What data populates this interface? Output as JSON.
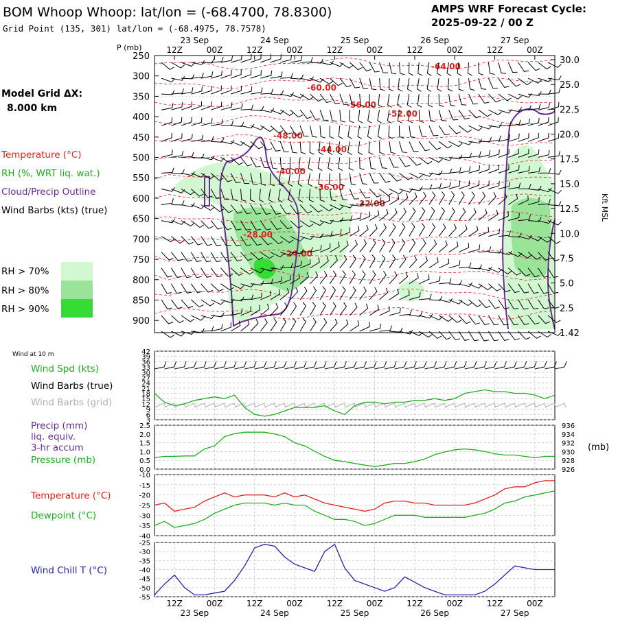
{
  "header": {
    "title": "BOM Whoop Whoop:  lat/lon = (-68.4700, 78.8300)",
    "grid_point": "Grid Point (135, 301) lat/lon = (-68.4975, 78.7578)",
    "cycle_line1": "AMPS WRF Forecast Cycle:",
    "cycle_line2": "2025-09-22 / 00  Z"
  },
  "left_panel": {
    "model_grid_label": "Model Grid ΔX:",
    "model_grid_value": "8.000 km",
    "legend_temperature": "Temperature (°C)",
    "legend_rh": "RH (%, WRT liq. wat.)",
    "legend_cloud": "Cloud/Precip Outline",
    "legend_wind": "Wind Barbs (kts) (true)",
    "rh_70": "RH > 70%",
    "rh_80": "RH > 80%",
    "rh_90": "RH > 90%"
  },
  "colors": {
    "temperature": "#dd2222",
    "rh": "#22aa22",
    "cloud": "#6a2c91",
    "wind_true": "#000000",
    "wind_grid": "#b0b0b0",
    "precip": "#6a2c91",
    "pressure": "#22aa22",
    "wind_chill": "#2222aa",
    "rh70": "#d2f8d2",
    "rh80": "#9ae49a",
    "rh90": "#34dc34"
  },
  "chart_data": [
    {
      "type": "cross-section",
      "name": "time-height",
      "p_axis_title": "P (mb)",
      "p_ticks": [
        "250",
        "300",
        "350",
        "400",
        "450",
        "500",
        "550",
        "600",
        "650",
        "700",
        "750",
        "800",
        "850",
        "900"
      ],
      "p_range": [
        250,
        930
      ],
      "kft_ticks": [
        "30.0",
        "25.0",
        "22.5",
        "20.0",
        "17.5",
        "15.0",
        "12.5",
        "10.0",
        "7.5",
        "5.0",
        "2.5",
        "1.42"
      ],
      "kft_axis_title": "Kft MSL",
      "time_labels_top": [
        "12Z",
        "00Z",
        "12Z",
        "00Z",
        "12Z",
        "00Z",
        "12Z",
        "00Z",
        "12Z",
        "00Z"
      ],
      "date_labels_top": [
        "23 Sep",
        "24 Sep",
        "25 Sep",
        "26 Sep",
        "27 Sep"
      ],
      "temperature_labels": [
        "-64.00",
        "-60.00",
        "-56.00",
        "-52.00",
        "-48.00",
        "-44.00",
        "-40.00",
        "-36.00",
        "-32.00",
        "-28.00",
        "-24.00"
      ]
    },
    {
      "type": "line",
      "name": "wind",
      "title": "Wind at 10 m",
      "label_speed": "Wind Spd (kts)",
      "label_barbs_true": "Wind Barbs (true)",
      "label_barbs_grid": "Wind Barbs (grid)",
      "y_ticks": [
        "42",
        "39",
        "36",
        "33",
        "30",
        "27",
        "24",
        "21",
        "18",
        "15",
        "12",
        "9",
        "6",
        "3"
      ],
      "ylim": [
        3,
        42
      ],
      "hours": [
        0,
        6,
        12,
        18,
        24,
        30,
        36,
        42,
        48,
        54,
        60,
        66,
        72,
        78,
        84,
        90,
        96,
        102,
        108,
        114,
        120,
        126,
        132,
        138,
        144,
        150,
        156,
        162,
        168,
        174,
        180,
        186,
        192,
        198,
        204,
        210,
        216,
        222,
        228,
        234,
        240
      ],
      "speed": [
        18,
        13,
        11,
        12,
        14,
        15,
        16,
        15,
        17,
        10,
        6,
        5,
        6,
        8,
        10,
        10,
        10,
        11,
        8,
        6,
        11,
        13,
        13,
        12,
        13,
        13,
        14,
        14,
        15,
        14,
        15,
        18,
        19,
        20,
        19,
        19,
        18,
        18,
        17,
        15,
        17
      ]
    },
    {
      "type": "line",
      "name": "precip-pressure",
      "label_precip": "Precip (mm)",
      "label_liq": "liq. equiv.",
      "label_accum": "3-hr accum",
      "label_pressure": "Pressure (mb)",
      "y_ticks_left": [
        "2.5",
        "2.0",
        "1.5",
        "1.0",
        "0.5",
        "0.0"
      ],
      "y_ticks_right": [
        "936",
        "934",
        "932",
        "930",
        "928",
        "926"
      ],
      "right_unit": "(mb)",
      "ylim_pressure": [
        926,
        936
      ],
      "hours": [
        0,
        6,
        12,
        18,
        24,
        30,
        36,
        42,
        48,
        54,
        60,
        66,
        72,
        78,
        84,
        90,
        96,
        102,
        108,
        114,
        120,
        126,
        132,
        138,
        144,
        150,
        156,
        162,
        168,
        174,
        180,
        186,
        192,
        198,
        204,
        210,
        216,
        222,
        228,
        234,
        240
      ],
      "pressure": [
        928.6,
        928.9,
        928.9,
        929.0,
        929.0,
        930.6,
        931.3,
        933.4,
        934.1,
        934.4,
        934.4,
        934.4,
        934.0,
        933.4,
        932.0,
        931.3,
        930.1,
        928.9,
        928.0,
        927.7,
        927.3,
        926.9,
        926.6,
        926.9,
        927.3,
        927.3,
        927.7,
        928.3,
        929.3,
        929.9,
        930.4,
        930.6,
        930.4,
        930.0,
        929.5,
        929.2,
        929.2,
        928.9,
        928.6,
        928.9,
        928.9
      ]
    },
    {
      "type": "line",
      "name": "temperature-dewpoint",
      "label_temperature": "Temperature (°C)",
      "label_dewpoint": "Dewpoint (°C)",
      "y_ticks": [
        "-10",
        "-15",
        "-20",
        "-25",
        "-30",
        "-35",
        "-40"
      ],
      "ylim": [
        -40,
        -10
      ],
      "hours": [
        0,
        6,
        12,
        18,
        24,
        30,
        36,
        42,
        48,
        54,
        60,
        66,
        72,
        78,
        84,
        90,
        96,
        102,
        108,
        114,
        120,
        126,
        132,
        138,
        144,
        150,
        156,
        162,
        168,
        174,
        180,
        186,
        192,
        198,
        204,
        210,
        216,
        222,
        228,
        234,
        240
      ],
      "temperature": [
        -25,
        -24,
        -28,
        -27,
        -26,
        -23,
        -21,
        -19,
        -21,
        -20,
        -20,
        -20,
        -21,
        -19,
        -21,
        -20,
        -22,
        -24,
        -25,
        -26,
        -27,
        -28,
        -27,
        -24,
        -23,
        -23,
        -24,
        -24,
        -25,
        -25,
        -25,
        -25,
        -24,
        -22,
        -20,
        -17,
        -16,
        -16,
        -14,
        -13,
        -13
      ],
      "dewpoint": [
        -35,
        -33,
        -36,
        -35,
        -34,
        -32,
        -29,
        -27,
        -25,
        -24,
        -24,
        -24,
        -25,
        -24,
        -25,
        -25,
        -28,
        -30,
        -32,
        -32,
        -33,
        -35,
        -34,
        -32,
        -30,
        -30,
        -30,
        -31,
        -31,
        -31,
        -31,
        -31,
        -30,
        -29,
        -27,
        -24,
        -23,
        -21,
        -20,
        -19,
        -18
      ]
    },
    {
      "type": "line",
      "name": "wind-chill",
      "label": "Wind Chill T (°C)",
      "y_ticks": [
        "-25",
        "-30",
        "-35",
        "-40",
        "-45",
        "-50",
        "-55"
      ],
      "ylim": [
        -55,
        -25
      ],
      "hours": [
        0,
        6,
        12,
        18,
        24,
        30,
        36,
        42,
        48,
        54,
        60,
        66,
        72,
        78,
        84,
        90,
        96,
        102,
        108,
        114,
        120,
        126,
        132,
        138,
        144,
        150,
        156,
        162,
        168,
        174,
        180,
        186,
        192,
        198,
        204,
        210,
        216,
        222,
        228,
        234,
        240
      ],
      "wind_chill": [
        -54,
        -48,
        -43,
        -50,
        -54,
        -54,
        -53,
        -52,
        -46,
        -38,
        -28,
        -26,
        -27,
        -33,
        -37,
        -39,
        -41,
        -30,
        -26,
        -39,
        -46,
        -48,
        -50,
        -52,
        -50,
        -44,
        -47,
        -50,
        -52,
        -54,
        -54,
        -54,
        -54,
        -52,
        -48,
        -43,
        -38,
        -39,
        -40,
        -40,
        -40
      ],
      "bottom_time_labels": [
        "12Z",
        "00Z",
        "12Z",
        "00Z",
        "12Z",
        "00Z",
        "12Z",
        "00Z",
        "12Z",
        "00Z"
      ],
      "bottom_date_labels": [
        "23 Sep",
        "24 Sep",
        "25 Sep",
        "26 Sep",
        "27 Sep"
      ]
    }
  ]
}
